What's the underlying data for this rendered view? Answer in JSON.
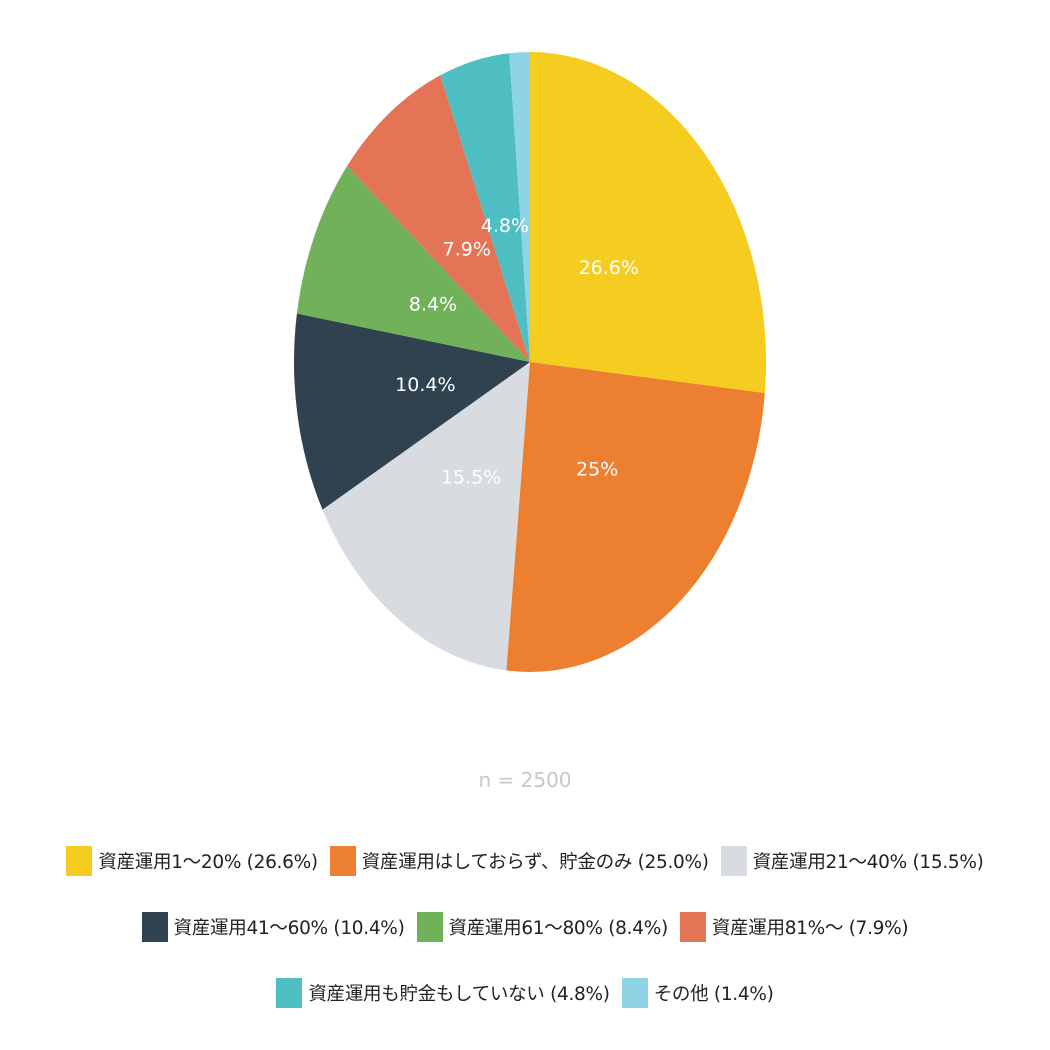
{
  "chart_data": {
    "type": "pie",
    "note": "n = 2500",
    "slices": [
      {
        "label": "資産運用1～20% (26.6%)",
        "value": 26.6,
        "data_label": "26.6%",
        "color": "#f5cc20"
      },
      {
        "label": "資産運用はしておらず、貯金のみ (25.0%)",
        "value": 25.0,
        "data_label": "25%",
        "color": "#ec7f30"
      },
      {
        "label": "資産運用21～40% (15.5%)",
        "value": 15.5,
        "data_label": "15.5%",
        "color": "#d8dbe0"
      },
      {
        "label": "資産運用41～60% (10.4%)",
        "value": 10.4,
        "data_label": "10.4%",
        "color": "#30424f"
      },
      {
        "label": "資産運用61～80% (8.4%)",
        "value": 8.4,
        "data_label": "8.4%",
        "color": "#71b159"
      },
      {
        "label": "資産運用81%～ (7.9%)",
        "value": 7.9,
        "data_label": "7.9%",
        "color": "#e47456"
      },
      {
        "label": "資産運用も貯金もしていない (4.8%)",
        "value": 4.8,
        "data_label": "4.8%",
        "color": "#4ebec2"
      },
      {
        "label": "その他 (1.4%)",
        "value": 1.4,
        "data_label": "",
        "color": "#8fd3e6"
      }
    ],
    "legend_position": "bottom"
  }
}
